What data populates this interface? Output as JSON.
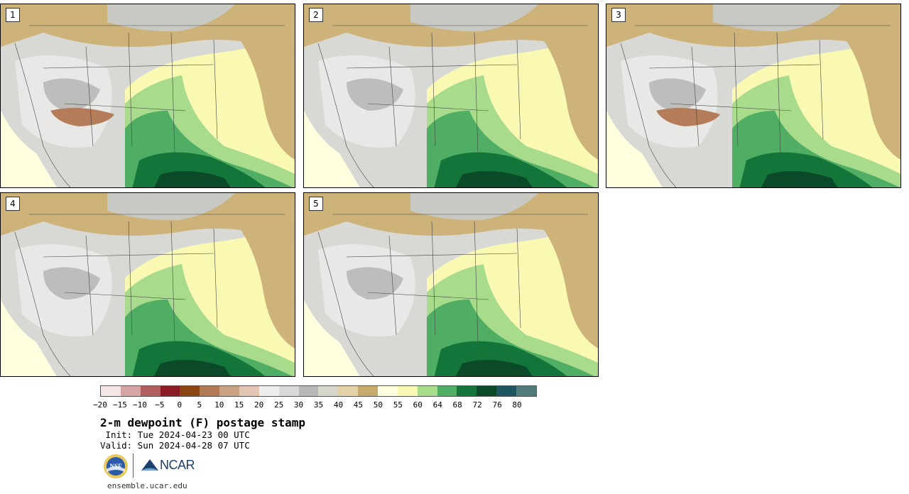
{
  "panels": [
    {
      "label": "1"
    },
    {
      "label": "2"
    },
    {
      "label": "3"
    },
    {
      "label": "4"
    },
    {
      "label": "5"
    }
  ],
  "colorbar": {
    "colors": [
      "#f3e6e4",
      "#d6a6a6",
      "#b35e5e",
      "#8b1b24",
      "#8a4613",
      "#b07a55",
      "#c9a183",
      "#e2c6b4",
      "#eeeeee",
      "#d9d9d9",
      "#b8b8b8",
      "#d6d6cc",
      "#e3d2a8",
      "#c8ab6c",
      "#ffffe0",
      "#f9f9b4",
      "#a8dc8c",
      "#4fae63",
      "#14753a",
      "#0a4a28",
      "#1e5660",
      "#527c7c"
    ],
    "ticks": [
      "−20",
      "−15",
      "−10",
      "−5",
      "0",
      "5",
      "10",
      "15",
      "20",
      "25",
      "30",
      "35",
      "40",
      "45",
      "50",
      "55",
      "60",
      "64",
      "68",
      "72",
      "76",
      "80"
    ]
  },
  "title": "2-m dewpoint (F) postage stamp",
  "init": " Init: Tue 2024-04-23 00 UTC",
  "valid": "Valid: Sun 2024-04-28 07 UTC",
  "logos": {
    "nsf": "nsf-logo",
    "ncar_text": "NCAR"
  },
  "site": "ensemble.ucar.edu"
}
